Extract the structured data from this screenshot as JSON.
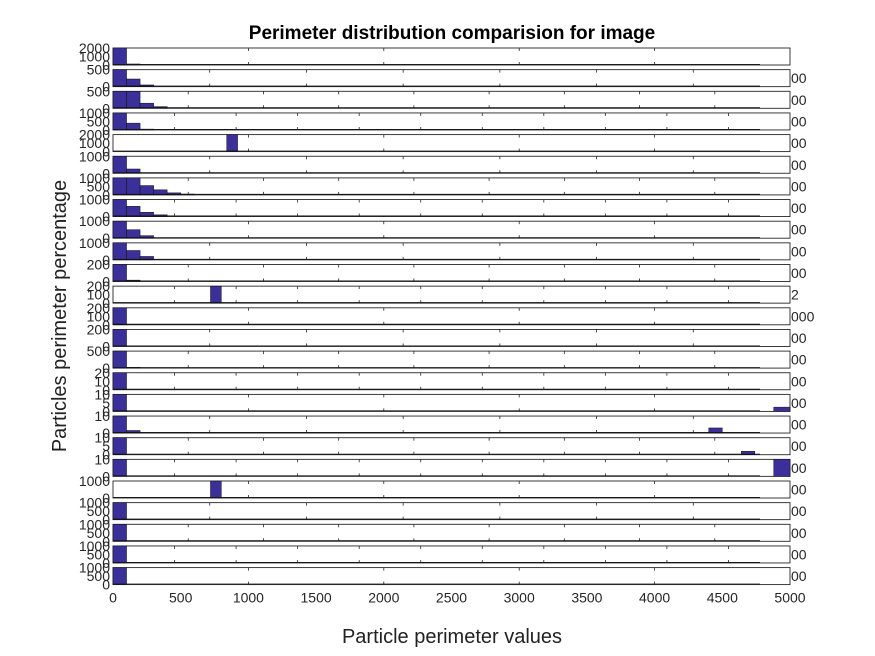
{
  "chart_data": {
    "type": "bar",
    "title": "Perimeter distribution comparision for image",
    "xlabel": "Particle perimeter values",
    "ylabel": "Particles perimeter percentage",
    "xlim": [
      0,
      5000
    ],
    "bottom_axis_ticks": [
      "0",
      "500",
      "1000",
      "1500",
      "2000",
      "2500",
      "3000",
      "3500",
      "4000",
      "4500",
      "5000"
    ],
    "bar_color": "#3b2f9a",
    "right_edge_fragments": [
      "00",
      "00",
      "00",
      "00",
      "00",
      "00",
      "00",
      "00",
      "00",
      "00",
      "00",
      "2",
      "000",
      "00",
      "00",
      "00",
      "00",
      "00",
      "00",
      "00",
      "00",
      "00",
      "00",
      "00",
      "00"
    ],
    "panels": [
      {
        "yticks": [
          "2000",
          "1000",
          "0"
        ],
        "xmax": 5000,
        "bars": [
          [
            0,
            100,
            1.0
          ],
          [
            100,
            200,
            0.06
          ]
        ]
      },
      {
        "yticks": [
          "500",
          "0"
        ],
        "xmax": 5000,
        "bars": [
          [
            0,
            100,
            1.0
          ],
          [
            100,
            200,
            0.45
          ],
          [
            200,
            300,
            0.1
          ]
        ]
      },
      {
        "yticks": [
          "500",
          "0"
        ],
        "xmax": 5000,
        "bars": [
          [
            0,
            100,
            1.0
          ],
          [
            100,
            200,
            1.0
          ],
          [
            200,
            300,
            0.3
          ],
          [
            300,
            400,
            0.1
          ]
        ]
      },
      {
        "yticks": [
          "1000",
          "500",
          "0"
        ],
        "xmax": 5000,
        "bars": [
          [
            0,
            100,
            1.0
          ],
          [
            100,
            200,
            0.4
          ],
          [
            200,
            300,
            0.05
          ]
        ]
      },
      {
        "yticks": [
          "2000",
          "1000",
          "0"
        ],
        "xmax": 5000,
        "bars": [
          [
            840,
            920,
            1.0
          ]
        ]
      },
      {
        "yticks": [
          "1000",
          "0"
        ],
        "xmax": 5000,
        "bars": [
          [
            0,
            100,
            1.0
          ],
          [
            100,
            200,
            0.25
          ]
        ]
      },
      {
        "yticks": [
          "1000",
          "500",
          "0"
        ],
        "xmax": 5000,
        "bars": [
          [
            0,
            100,
            1.0
          ],
          [
            100,
            200,
            1.0
          ],
          [
            200,
            300,
            0.55
          ],
          [
            300,
            400,
            0.3
          ],
          [
            400,
            500,
            0.12
          ],
          [
            500,
            600,
            0.05
          ]
        ]
      },
      {
        "yticks": [
          "1000",
          "0"
        ],
        "xmax": 5000,
        "bars": [
          [
            0,
            100,
            1.0
          ],
          [
            100,
            200,
            0.6
          ],
          [
            200,
            300,
            0.25
          ],
          [
            300,
            400,
            0.1
          ]
        ]
      },
      {
        "yticks": [
          "1000",
          "0"
        ],
        "xmax": 5000,
        "bars": [
          [
            0,
            100,
            1.0
          ],
          [
            100,
            200,
            0.5
          ],
          [
            200,
            300,
            0.15
          ]
        ]
      },
      {
        "yticks": [
          "1000",
          "0"
        ],
        "xmax": 5000,
        "bars": [
          [
            0,
            100,
            1.0
          ],
          [
            100,
            200,
            0.55
          ],
          [
            200,
            300,
            0.2
          ]
        ]
      },
      {
        "yticks": [
          "200",
          "0"
        ],
        "xmax": 5000,
        "bars": [
          [
            0,
            100,
            1.0
          ],
          [
            100,
            200,
            0.08
          ]
        ]
      },
      {
        "yticks": [
          "200",
          "100",
          "0"
        ],
        "xmax": 5000,
        "bars": [
          [
            720,
            800,
            1.0
          ]
        ]
      },
      {
        "yticks": [
          "200",
          "100",
          "0"
        ],
        "xmax": 5000,
        "bars": [
          [
            0,
            100,
            1.0
          ]
        ]
      },
      {
        "yticks": [
          "200",
          "0"
        ],
        "xmax": 5000,
        "bars": [
          [
            0,
            100,
            1.0
          ]
        ]
      },
      {
        "yticks": [
          "500",
          "0"
        ],
        "xmax": 5000,
        "bars": [
          [
            0,
            100,
            1.0
          ],
          [
            100,
            200,
            0.05
          ]
        ]
      },
      {
        "yticks": [
          "20",
          "10",
          "0"
        ],
        "xmax": 5000,
        "bars": [
          [
            0,
            100,
            1.0
          ]
        ]
      },
      {
        "yticks": [
          "10",
          "5",
          "0"
        ],
        "xmax": 5000,
        "bars": [
          [
            0,
            100,
            1.0
          ],
          [
            4880,
            5000,
            0.25
          ]
        ]
      },
      {
        "yticks": [
          "10",
          "0"
        ],
        "xmax": 5000,
        "bars": [
          [
            0,
            100,
            1.0
          ],
          [
            100,
            200,
            0.15
          ],
          [
            4400,
            4500,
            0.3
          ]
        ]
      },
      {
        "yticks": [
          "10",
          "5",
          "0"
        ],
        "xmax": 5000,
        "bars": [
          [
            0,
            100,
            1.0
          ],
          [
            4640,
            4740,
            0.2
          ]
        ]
      },
      {
        "yticks": [
          "10",
          "0"
        ],
        "xmax": 5000,
        "bars": [
          [
            0,
            100,
            1.0
          ],
          [
            4880,
            5000,
            1.0
          ]
        ]
      },
      {
        "yticks": [
          "1000",
          "0"
        ],
        "xmax": 5000,
        "bars": [
          [
            720,
            800,
            1.0
          ]
        ]
      },
      {
        "yticks": [
          "1000",
          "500",
          "0"
        ],
        "xmax": 5000,
        "bars": [
          [
            0,
            100,
            1.0
          ]
        ]
      },
      {
        "yticks": [
          "1000",
          "500",
          "0"
        ],
        "xmax": 5000,
        "bars": [
          [
            0,
            100,
            1.0
          ]
        ]
      },
      {
        "yticks": [
          "1000",
          "500",
          "0"
        ],
        "xmax": 5000,
        "bars": [
          [
            0,
            100,
            1.0
          ]
        ]
      },
      {
        "yticks": [
          "1000",
          "500",
          "0"
        ],
        "xmax": 5000,
        "bars": [
          [
            0,
            100,
            1.0
          ]
        ]
      }
    ]
  }
}
